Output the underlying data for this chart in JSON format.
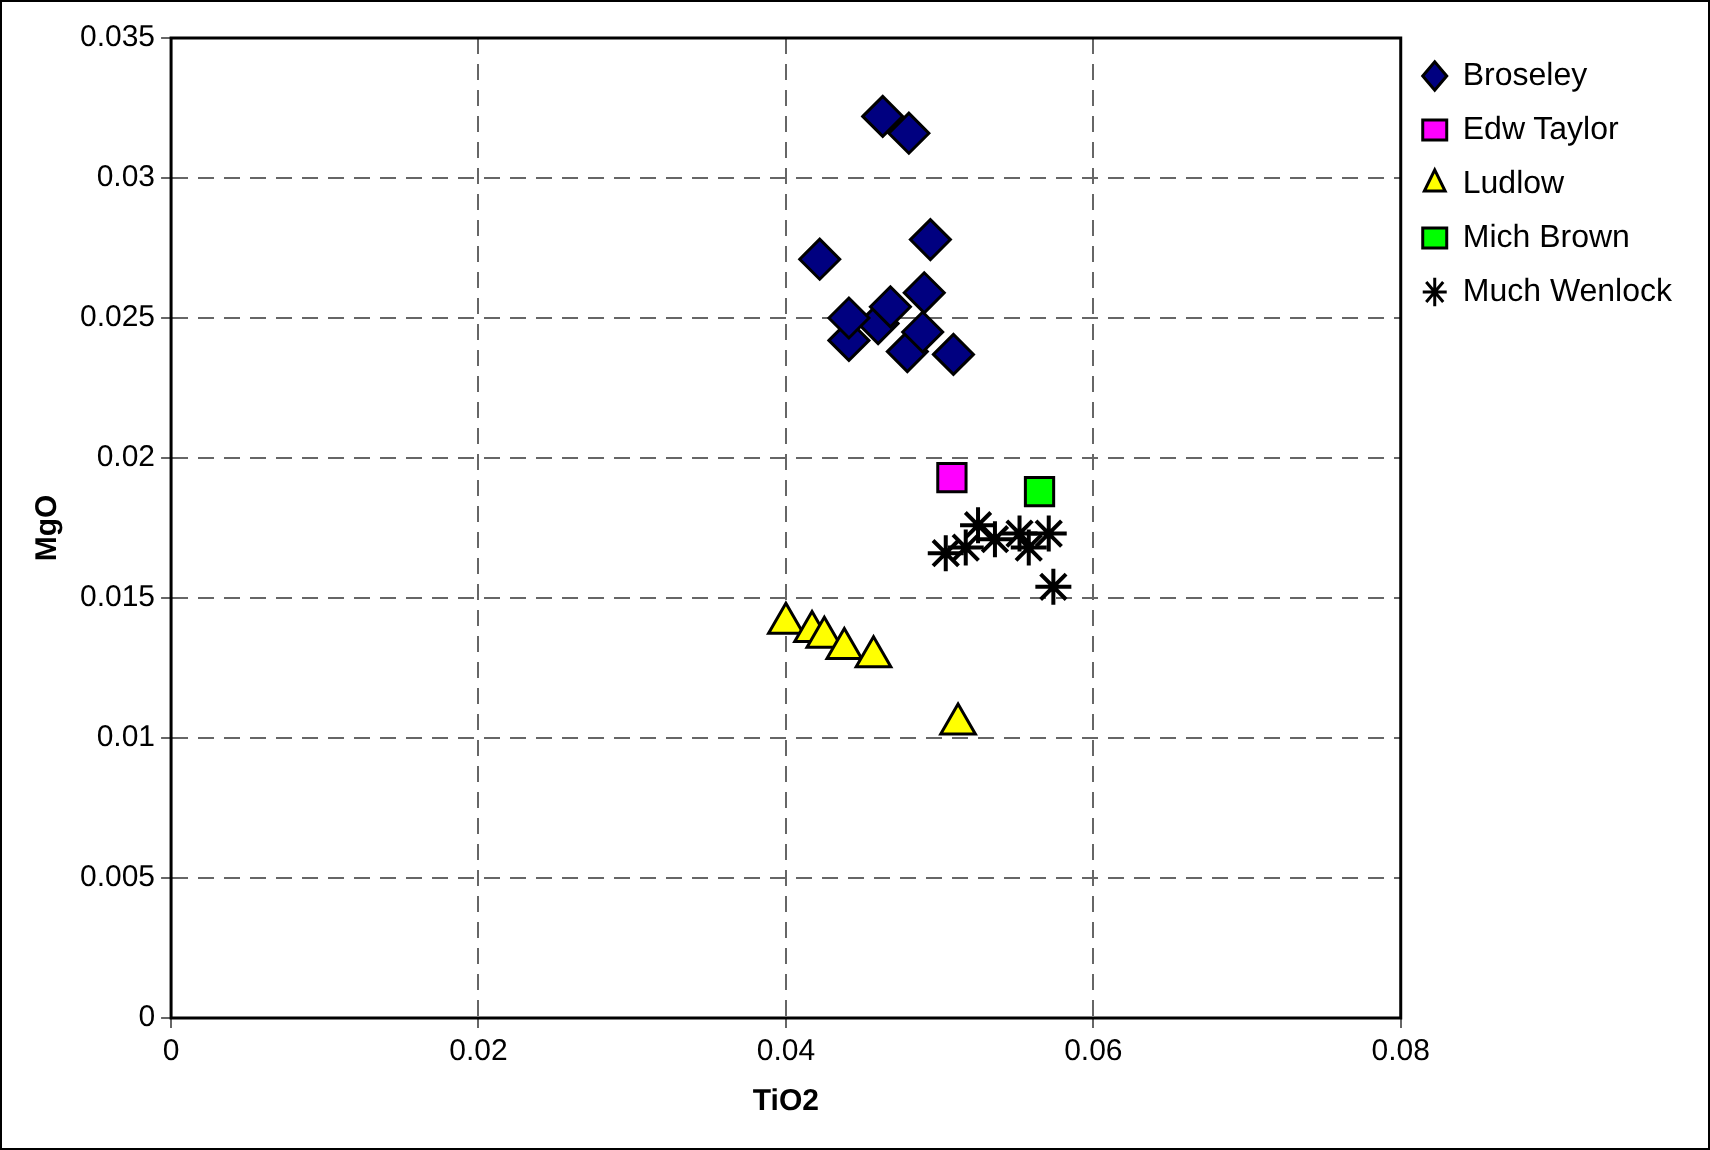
{
  "chart_data": {
    "type": "scatter",
    "xlabel": "TiO2",
    "ylabel": "MgO",
    "xlim": [
      0,
      0.08
    ],
    "xticks": [
      0,
      0.02,
      0.04,
      0.06,
      0.08
    ],
    "ylim": [
      0,
      0.035
    ],
    "yticks": [
      0,
      0.005,
      0.01,
      0.015,
      0.02,
      0.025,
      0.03,
      0.035
    ],
    "grid": true,
    "legend": "top right",
    "series": [
      {
        "name": "Broseley",
        "color": "#000080",
        "marker": "diamond",
        "x": [
          0.0463,
          0.048,
          0.0422,
          0.0494,
          0.0441,
          0.0479,
          0.0509,
          0.0489,
          0.046,
          0.0441,
          0.049,
          0.0468
        ],
        "values": [
          0.0322,
          0.0316,
          0.0271,
          0.0278,
          0.0242,
          0.0238,
          0.0237,
          0.0245,
          0.0248,
          0.025,
          0.0259,
          0.0254
        ]
      },
      {
        "name": "Edw Taylor",
        "color": "#ff00ff",
        "marker": "square",
        "x": [
          0.0508
        ],
        "values": [
          0.0193
        ]
      },
      {
        "name": "Ludlow",
        "color": "#ffff00",
        "marker": "triangle",
        "x": [
          0.04,
          0.0417,
          0.0425,
          0.0438,
          0.0457,
          0.0512
        ],
        "values": [
          0.0141,
          0.0138,
          0.0136,
          0.0132,
          0.0129,
          0.0105
        ]
      },
      {
        "name": "Mich Brown",
        "color": "#00ff00",
        "marker": "square",
        "x": [
          0.0565
        ],
        "values": [
          0.0188
        ]
      },
      {
        "name": "Much Wenlock",
        "color": "#000000",
        "marker": "cross",
        "x": [
          0.0525,
          0.0517,
          0.0536,
          0.0552,
          0.0571,
          0.0574,
          0.0558,
          0.0504
        ],
        "values": [
          0.0176,
          0.0168,
          0.0171,
          0.0173,
          0.0173,
          0.0154,
          0.0168,
          0.0166
        ]
      }
    ]
  }
}
